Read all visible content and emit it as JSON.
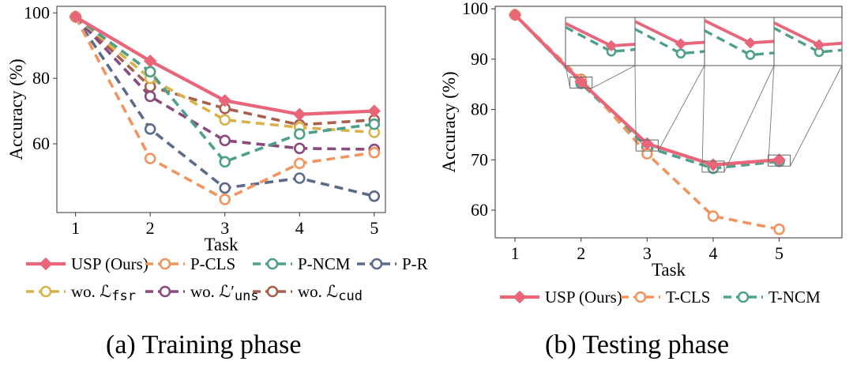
{
  "captions": {
    "a": "(a) Training phase",
    "b": "(b) Testing phase"
  },
  "chart_data": [
    {
      "type": "line",
      "id": "a",
      "xlabel": "Task",
      "ylabel": "Accuracy (%)",
      "x": [
        1,
        2,
        3,
        4,
        5
      ],
      "xlim": [
        0.75,
        5.15
      ],
      "ylim": [
        39,
        102
      ],
      "yticks": [
        60,
        80,
        100
      ],
      "legend_position": "bottom",
      "series": [
        {
          "name": "USP (Ours)",
          "color": "#e8657a",
          "marker": "diamond",
          "dash": false,
          "values": [
            98.8,
            85.3,
            73.2,
            69.0,
            70.0
          ]
        },
        {
          "name": "P-CLS",
          "color": "#f0955f",
          "marker": "circle",
          "dash": true,
          "values": [
            98.8,
            55.5,
            43.0,
            54.0,
            57.3
          ]
        },
        {
          "name": "P-NCM",
          "color": "#4fa08b",
          "marker": "circle",
          "dash": true,
          "values": [
            98.8,
            82.0,
            54.5,
            63.0,
            66.0
          ]
        },
        {
          "name": "P-R",
          "color": "#5d6b8a",
          "marker": "circle",
          "dash": true,
          "values": [
            98.8,
            64.5,
            46.5,
            49.5,
            44.0
          ]
        },
        {
          "name": "wo. ℒfsr",
          "prefix": "wo. ℒ",
          "sub": "fsr",
          "color": "#d9b24a",
          "marker": "circle",
          "dash": true,
          "values": [
            98.8,
            80.0,
            67.3,
            65.0,
            63.5
          ]
        },
        {
          "name": "wo. ℒ′uns",
          "prefix": "wo. ℒ′",
          "sub": "uns",
          "color": "#8a4a7d",
          "marker": "circle",
          "dash": true,
          "values": [
            98.8,
            74.5,
            61.0,
            58.6,
            58.3
          ]
        },
        {
          "name": "wo. ℒcud",
          "prefix": "wo. ℒ",
          "sub": "cud",
          "color": "#a8604d",
          "marker": "circle",
          "dash": true,
          "values": [
            98.8,
            77.5,
            70.8,
            65.8,
            67.3
          ]
        }
      ]
    },
    {
      "type": "line",
      "id": "b",
      "xlabel": "Task",
      "ylabel": "Accuracy (%)",
      "x": [
        1,
        2,
        3,
        4,
        5
      ],
      "xlim": [
        0.7,
        5.95
      ],
      "ylim": [
        54.5,
        100.5
      ],
      "yticks": [
        60,
        70,
        80,
        90,
        100
      ],
      "legend_position": "bottom",
      "series": [
        {
          "name": "USP (Ours)",
          "color": "#e8657a",
          "marker": "diamond",
          "dash": false,
          "values": [
            98.8,
            85.5,
            73.2,
            69.0,
            70.0
          ]
        },
        {
          "name": "T-CLS",
          "color": "#f0955f",
          "marker": "circle",
          "dash": true,
          "values": [
            98.8,
            86.0,
            71.2,
            58.8,
            56.2
          ]
        },
        {
          "name": "T-NCM",
          "color": "#4fa08b",
          "marker": "circle",
          "dash": true,
          "values": [
            98.8,
            85.2,
            72.5,
            68.3,
            69.7
          ]
        }
      ],
      "zoom_insets": [
        {
          "task": 2,
          "usp": 94.6,
          "ncm": 93.4
        },
        {
          "task": 3,
          "usp": 95.0,
          "ncm": 93.0
        },
        {
          "task": 4,
          "usp": 95.2,
          "ncm": 92.7
        },
        {
          "task": 5,
          "usp": 94.8,
          "ncm": 93.3
        }
      ]
    }
  ]
}
